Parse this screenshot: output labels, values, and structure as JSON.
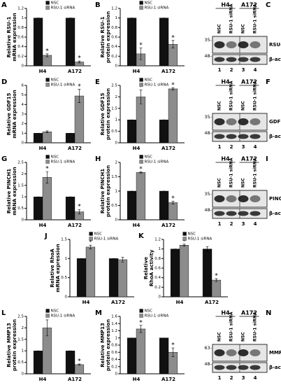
{
  "chart_data": [
    {
      "type": "bar",
      "panel": "A",
      "ylabel": [
        "Relative RSU-1",
        "mRNA expression"
      ],
      "categories": [
        "H4",
        "A172"
      ],
      "ylim": [
        0,
        1.2
      ],
      "yticks": [
        0,
        0.2,
        0.4,
        0.6,
        0.8,
        1,
        1.2
      ],
      "series": [
        {
          "name": "NSC",
          "color": "#111111",
          "values": [
            1,
            1
          ],
          "errors": [
            0,
            0
          ],
          "significance": [
            null,
            null
          ]
        },
        {
          "name": "RSU-1 siRNA",
          "color": "#8c8c8c",
          "values": [
            0.22,
            0.08
          ],
          "errors": [
            0.03,
            0.02
          ],
          "significance": [
            "*",
            "*"
          ]
        }
      ]
    },
    {
      "type": "bar",
      "panel": "B",
      "ylabel": [
        "Relative RSU-1",
        "protein expression"
      ],
      "categories": [
        "H4",
        "A172"
      ],
      "ylim": [
        0,
        1.2
      ],
      "yticks": [
        0,
        0.2,
        0.4,
        0.6,
        0.8,
        1,
        1.2
      ],
      "series": [
        {
          "name": "NSC",
          "color": "#111111",
          "values": [
            1,
            1
          ],
          "errors": [
            0,
            0
          ],
          "significance": [
            null,
            null
          ]
        },
        {
          "name": "RSU-1 siRNA",
          "color": "#8c8c8c",
          "values": [
            0.25,
            0.45
          ],
          "errors": [
            0.12,
            0.08
          ],
          "significance": [
            "*",
            "*"
          ]
        }
      ]
    },
    {
      "type": "bar",
      "panel": "D",
      "ylabel": [
        "Relative GDF15",
        "mRNA expression"
      ],
      "categories": [
        "H4",
        "A172"
      ],
      "ylim": [
        0,
        6
      ],
      "yticks": [
        0,
        1,
        2,
        3,
        4,
        5,
        6
      ],
      "series": [
        {
          "name": "NSC",
          "color": "#111111",
          "values": [
            1,
            1
          ],
          "errors": [
            0,
            0
          ],
          "significance": [
            null,
            null
          ]
        },
        {
          "name": "RSU-1 siRNA",
          "color": "#8c8c8c",
          "values": [
            1.15,
            4.9
          ],
          "errors": [
            0.1,
            0.7
          ],
          "significance": [
            null,
            "*"
          ]
        }
      ]
    },
    {
      "type": "bar",
      "panel": "E",
      "ylabel": [
        "Relative GDF15",
        "protein expression"
      ],
      "categories": [
        "H4",
        "A172"
      ],
      "ylim": [
        0,
        2.5
      ],
      "yticks": [
        0,
        0.5,
        1,
        1.5,
        2,
        2.5
      ],
      "series": [
        {
          "name": "NSC",
          "color": "#111111",
          "values": [
            1,
            1
          ],
          "errors": [
            0,
            0
          ],
          "significance": [
            null,
            null
          ]
        },
        {
          "name": "RSU-1 siRNA",
          "color": "#8c8c8c",
          "values": [
            2,
            2.35
          ],
          "errors": [
            0.3,
            0.05
          ],
          "significance": [
            "*",
            "*"
          ]
        }
      ]
    },
    {
      "type": "bar",
      "panel": "G",
      "ylabel": [
        "Relative PINCH1",
        "mRNA expression"
      ],
      "categories": [
        "H4",
        "A172"
      ],
      "ylim": [
        0,
        2.5
      ],
      "yticks": [
        0,
        0.5,
        1,
        1.5,
        2,
        2.5
      ],
      "series": [
        {
          "name": "NSC",
          "color": "#111111",
          "values": [
            1,
            1
          ],
          "errors": [
            0,
            0
          ],
          "significance": [
            null,
            null
          ]
        },
        {
          "name": "RSU-1 siRNA",
          "color": "#8c8c8c",
          "values": [
            1.85,
            0.35
          ],
          "errors": [
            0.25,
            0.1
          ],
          "significance": [
            "*",
            "*"
          ]
        }
      ]
    },
    {
      "type": "bar",
      "panel": "H",
      "ylabel": [
        "Relative PINCH1",
        "protein expression"
      ],
      "categories": [
        "H4",
        "A172"
      ],
      "ylim": [
        0,
        2
      ],
      "yticks": [
        0,
        0.5,
        1,
        1.5,
        2
      ],
      "series": [
        {
          "name": "NSC",
          "color": "#111111",
          "values": [
            1,
            1
          ],
          "errors": [
            0,
            0
          ],
          "significance": [
            null,
            null
          ]
        },
        {
          "name": "RSU-1 siRNA",
          "color": "#8c8c8c",
          "values": [
            1.65,
            0.6
          ],
          "errors": [
            0.02,
            0.05
          ],
          "significance": [
            "*",
            "*"
          ]
        }
      ]
    },
    {
      "type": "bar",
      "panel": "J",
      "ylabel": [
        "Relative RhoA",
        "mRNA expression"
      ],
      "categories": [
        "H4",
        "A172"
      ],
      "ylim": [
        0,
        1.5
      ],
      "yticks": [
        0,
        0.5,
        1,
        1.5
      ],
      "series": [
        {
          "name": "NSC",
          "color": "#111111",
          "values": [
            1,
            1
          ],
          "errors": [
            0,
            0
          ],
          "significance": [
            null,
            null
          ]
        },
        {
          "name": "RSU-1 siRNA",
          "color": "#8c8c8c",
          "values": [
            1.3,
            0.97
          ],
          "errors": [
            0.05,
            0.06
          ],
          "significance": [
            "*",
            null
          ]
        }
      ]
    },
    {
      "type": "bar",
      "panel": "K",
      "ylabel": [
        "Relative",
        "RhoA activity"
      ],
      "categories": [
        "H4",
        "A172"
      ],
      "ylim": [
        0,
        1.2
      ],
      "yticks": [
        0,
        0.2,
        0.4,
        0.6,
        0.8,
        1,
        1.2
      ],
      "series": [
        {
          "name": "NSC",
          "color": "#111111",
          "values": [
            1,
            1
          ],
          "errors": [
            0,
            0.05
          ],
          "significance": [
            null,
            null
          ]
        },
        {
          "name": "RSU-1 siRNA",
          "color": "#8c8c8c",
          "values": [
            1.08,
            0.35
          ],
          "errors": [
            0.02,
            0.03
          ],
          "significance": [
            "*",
            "*"
          ]
        }
      ]
    },
    {
      "type": "bar",
      "panel": "L",
      "ylabel": [
        "Relative MMP13",
        "protein expression"
      ],
      "categories": [
        "H4",
        "A172"
      ],
      "ylim": [
        0,
        2.5
      ],
      "yticks": [
        0,
        0.5,
        1,
        1.5,
        2,
        2.5
      ],
      "series": [
        {
          "name": "NSC",
          "color": "#111111",
          "values": [
            1,
            1
          ],
          "errors": [
            0,
            0
          ],
          "significance": [
            null,
            null
          ]
        },
        {
          "name": "RSU-1 siRNA",
          "color": "#8c8c8c",
          "values": [
            2,
            0.4
          ],
          "errors": [
            0.35,
            0.03
          ],
          "significance": [
            "*",
            "*"
          ]
        }
      ]
    },
    {
      "type": "bar",
      "panel": "M",
      "ylabel": [
        "Relative MMP13",
        "protein expression"
      ],
      "categories": [
        "H4",
        "A172"
      ],
      "ylim": [
        0,
        1.6
      ],
      "yticks": [
        0,
        0.2,
        0.4,
        0.6,
        0.8,
        1,
        1.2,
        1.4,
        1.6
      ],
      "series": [
        {
          "name": "NSC",
          "color": "#111111",
          "values": [
            1,
            1
          ],
          "errors": [
            0,
            0
          ],
          "significance": [
            null,
            null
          ]
        },
        {
          "name": "RSU-1 siRNA",
          "color": "#8c8c8c",
          "values": [
            1.25,
            0.6
          ],
          "errors": [
            0.1,
            0.12
          ],
          "significance": [
            "*",
            "*"
          ]
        }
      ]
    }
  ],
  "blots": [
    {
      "panel": "C",
      "groups": [
        "H4",
        "A172"
      ],
      "lanes": [
        "NSC",
        "RSU-1 siRNA",
        "NSC",
        "RSU-1 siRNA"
      ],
      "markers": [
        "35-",
        "48-"
      ],
      "bands": [
        "RSU-1",
        "β-actin"
      ],
      "lane_numbers": [
        "1",
        "2",
        "3",
        "4"
      ]
    },
    {
      "panel": "F",
      "groups": [
        "H4",
        "A172"
      ],
      "lanes": [
        "NSC",
        "RSU-1 siRNA",
        "NSC",
        "RSU-1 siRNA"
      ],
      "markers": [
        "35-",
        "48-"
      ],
      "bands": [
        "GDF15",
        "β-actin"
      ],
      "lane_numbers": [
        "1",
        "2",
        "3",
        "4"
      ]
    },
    {
      "panel": "I",
      "groups": [
        "H4",
        "A172"
      ],
      "lanes": [
        "NSC",
        "RSU-1 siRNA",
        "NSC",
        "RSU-1 siRNA"
      ],
      "markers": [
        "35-",
        "48-"
      ],
      "bands": [
        "PINCH1",
        "β-actin"
      ],
      "lane_numbers": [
        "1",
        "2",
        "3",
        "4"
      ]
    },
    {
      "panel": "N",
      "groups": [
        "H4",
        "A172"
      ],
      "lanes": [
        "NSC",
        "RSU-1 siRNA",
        "NSC",
        "RSU-1 siRNA"
      ],
      "markers": [
        "63-",
        "48-"
      ],
      "bands": [
        "MMP13",
        "β-actin"
      ],
      "lane_numbers": [
        "1",
        "2",
        "3",
        "4"
      ]
    }
  ]
}
